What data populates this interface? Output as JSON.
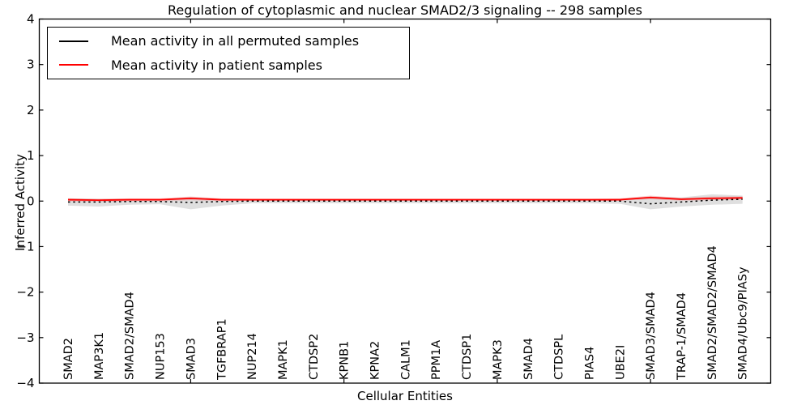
{
  "figure": {
    "title": "Regulation of cytoplasmic and nuclear SMAD2/3 signaling -- 298 samples",
    "xlabel": "Cellular Entities",
    "ylabel": "Inferred Activity"
  },
  "legend": {
    "items": [
      {
        "label": "Mean activity in all permuted samples",
        "color": "#000000"
      },
      {
        "label": "Mean activity in patient samples",
        "color": "#ff0000"
      }
    ]
  },
  "colors": {
    "background": "#ffffff",
    "axis": "#000000",
    "permuted_line": "#000000",
    "patient_line": "#ff0000",
    "permuted_band": "rgba(128,128,128,0.25)",
    "patient_band": "rgba(255,0,0,0.18)"
  },
  "chart_data": {
    "type": "line",
    "title": "Regulation of cytoplasmic and nuclear SMAD2/3 signaling -- 298 samples",
    "xlabel": "Cellular Entities",
    "ylabel": "Inferred Activity",
    "ylim": [
      -4,
      4
    ],
    "yticks": [
      4,
      3,
      2,
      1,
      0,
      -1,
      -2,
      -3,
      -4
    ],
    "ytick_labels": [
      "4",
      "3",
      "2",
      "1",
      "0",
      "−1",
      "−2",
      "−3",
      "−4"
    ],
    "xtick_indices": [
      4,
      9,
      14,
      19
    ],
    "grid": false,
    "legend_position": "upper-left",
    "categories": [
      "SMAD2",
      "MAP3K1",
      "SMAD2/SMAD4",
      "NUP153",
      "SMAD3",
      "TGFBRAP1",
      "NUP214",
      "MAPK1",
      "CTDSP2",
      "KPNB1",
      "KPNA2",
      "CALM1",
      "PPM1A",
      "CTDSP1",
      "MAPK3",
      "SMAD4",
      "CTDSPL",
      "PIAS4",
      "UBE2I",
      "SMAD3/SMAD4",
      "TRAP-1/SMAD4",
      "SMAD2/SMAD2/SMAD4",
      "SMAD4/Ubc9/PIASy"
    ],
    "series": [
      {
        "name": "Mean activity in all permuted samples",
        "color": "#000000",
        "style": "dashed",
        "values": [
          -0.02,
          -0.02,
          -0.01,
          -0.01,
          -0.03,
          -0.01,
          0.0,
          0.0,
          0.0,
          0.0,
          0.0,
          0.0,
          0.0,
          0.0,
          0.0,
          0.0,
          0.0,
          0.0,
          0.0,
          -0.06,
          -0.02,
          0.02,
          0.04
        ]
      },
      {
        "name": "Mean activity in patient samples",
        "color": "#ff0000",
        "style": "solid",
        "values": [
          0.03,
          0.02,
          0.03,
          0.03,
          0.06,
          0.03,
          0.03,
          0.03,
          0.03,
          0.03,
          0.03,
          0.03,
          0.03,
          0.03,
          0.03,
          0.03,
          0.03,
          0.03,
          0.03,
          0.08,
          0.04,
          0.06,
          0.07
        ]
      }
    ],
    "bands": [
      {
        "name": "permuted-samples-range",
        "color": "rgba(128,128,128,0.25)",
        "upper": [
          0.06,
          0.05,
          0.05,
          0.04,
          0.09,
          0.05,
          0.04,
          0.04,
          0.04,
          0.04,
          0.04,
          0.04,
          0.04,
          0.04,
          0.04,
          0.04,
          0.04,
          0.04,
          0.05,
          0.1,
          0.08,
          0.15,
          0.12
        ],
        "lower": [
          -0.1,
          -0.12,
          -0.08,
          -0.07,
          -0.18,
          -0.1,
          -0.05,
          -0.05,
          -0.05,
          -0.05,
          -0.05,
          -0.05,
          -0.05,
          -0.05,
          -0.05,
          -0.05,
          -0.05,
          -0.05,
          -0.06,
          -0.18,
          -0.12,
          -0.08,
          -0.06
        ]
      },
      {
        "name": "patient-samples-range",
        "color": "rgba(255,0,0,0.18)",
        "upper": [
          0.06,
          0.05,
          0.06,
          0.06,
          0.1,
          0.06,
          0.05,
          0.05,
          0.05,
          0.05,
          0.05,
          0.05,
          0.05,
          0.05,
          0.05,
          0.05,
          0.05,
          0.05,
          0.06,
          0.12,
          0.07,
          0.1,
          0.1
        ],
        "lower": [
          0.0,
          -0.01,
          0.0,
          0.0,
          0.02,
          0.0,
          0.01,
          0.01,
          0.01,
          0.01,
          0.01,
          0.01,
          0.01,
          0.01,
          0.01,
          0.01,
          0.01,
          0.01,
          0.01,
          0.04,
          0.01,
          0.02,
          0.04
        ]
      }
    ]
  }
}
